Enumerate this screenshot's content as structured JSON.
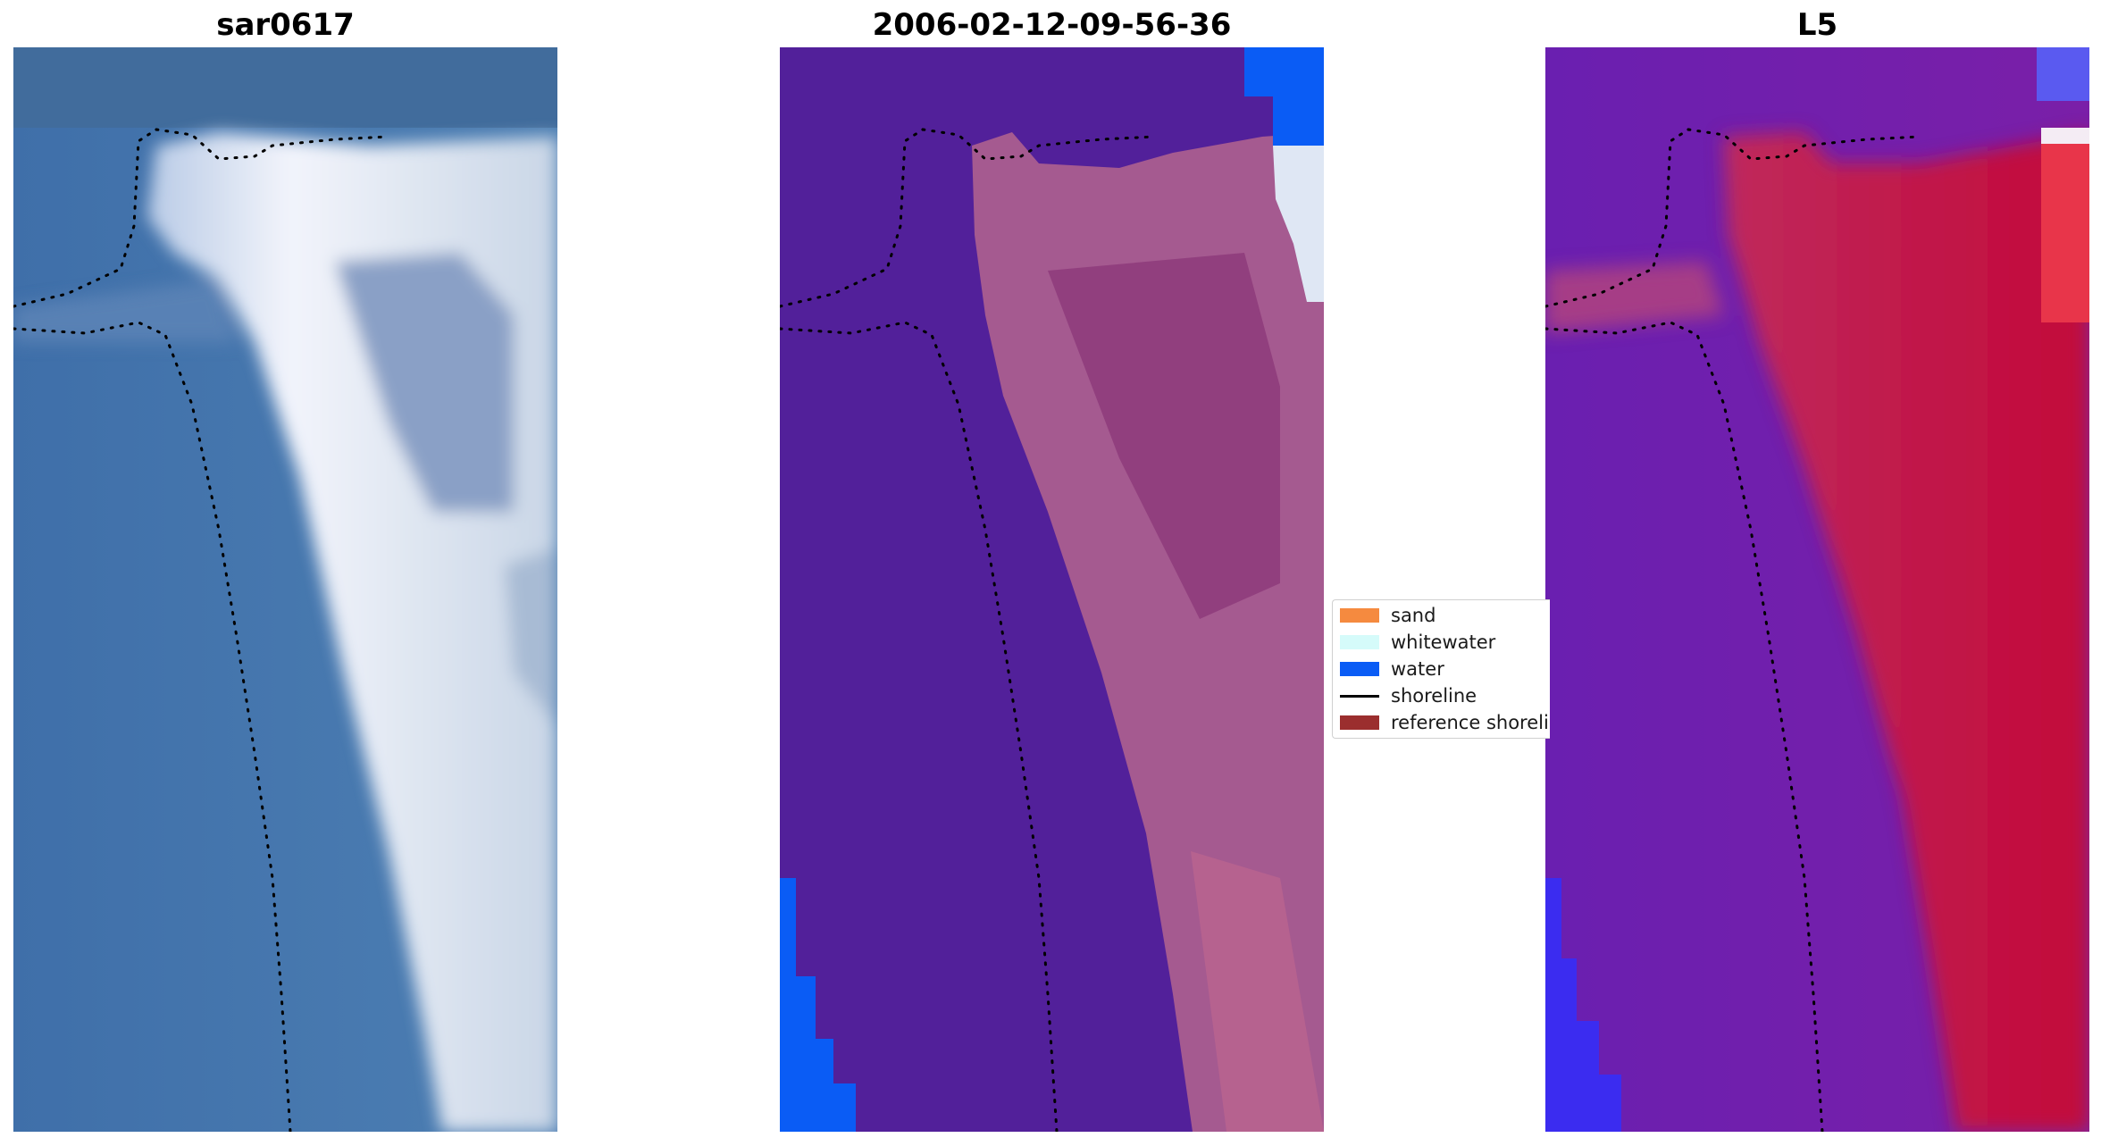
{
  "panels": [
    {
      "title": "sar0617"
    },
    {
      "title": "2006-02-12-09-56-36"
    },
    {
      "title": "L5"
    }
  ],
  "legend": [
    {
      "label": "sand",
      "color": "#f58a3f",
      "kind": "patch"
    },
    {
      "label": "whitewater",
      "color": "#d5fbfa",
      "kind": "patch"
    },
    {
      "label": "water",
      "color": "#0a5cf5",
      "kind": "patch"
    },
    {
      "label": "shoreline",
      "color": "#000000",
      "kind": "line"
    },
    {
      "label": "reference shoreline",
      "color": "#9b2e2e",
      "kind": "patch"
    }
  ],
  "colors": {
    "rgb_sea": "#3f72ab",
    "rgb_beach": "#e8eef6",
    "class_background": "#52209a",
    "class_sand_overlay": "#b05a8e",
    "class_water": "#0a5cf5",
    "mndwi_low": "#6a1fb0",
    "mndwi_high": "#c2083a"
  }
}
